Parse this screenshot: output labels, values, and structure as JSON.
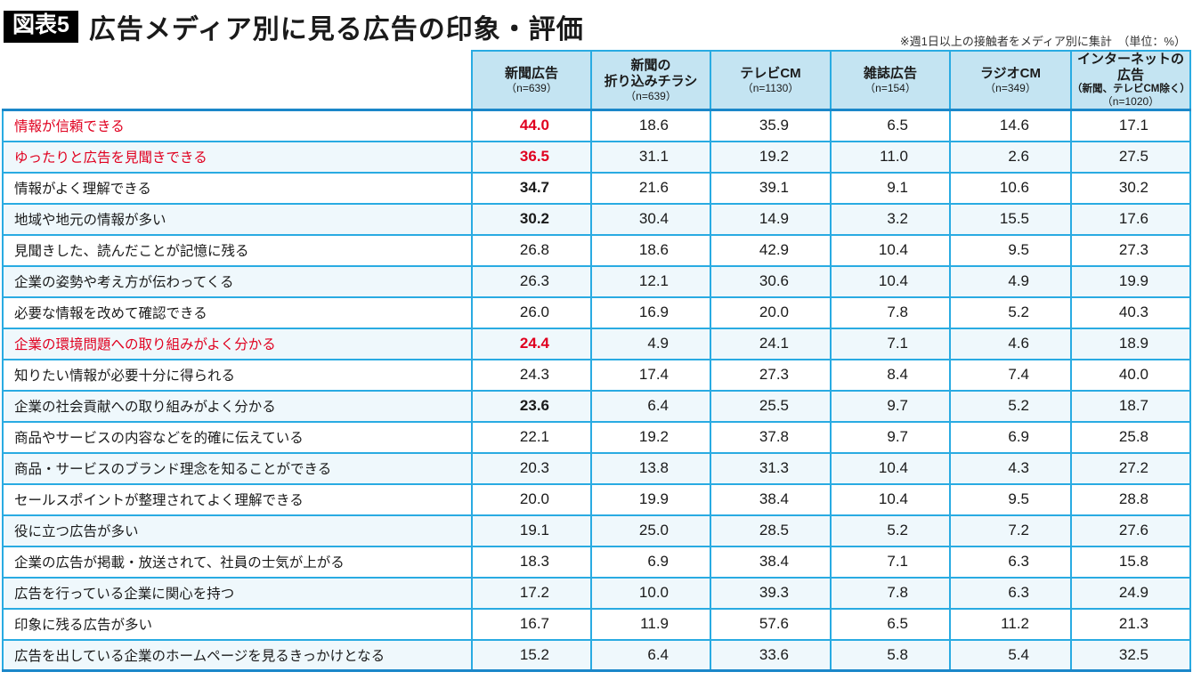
{
  "title": {
    "badge": "図表5",
    "text": "広告メディア別に見る広告の印象・評価"
  },
  "note": "※週1日以上の接触者をメディア別に集計　（単位：%）",
  "colors": {
    "accent_red": "#E0001F",
    "header_bg": "#C4E4F2",
    "border_cyan": "#29ABE2",
    "separator_blue": "#1B87C9",
    "row_alt_bg": "#EFF8FC"
  },
  "chart_data": {
    "type": "table",
    "unit": "%",
    "columns": [
      {
        "label": "新聞広告",
        "n": "（n=639）"
      },
      {
        "label": "新聞の\n折り込みチラシ",
        "n": "（n=639）"
      },
      {
        "label": "テレビCM",
        "n": "（n=1130）"
      },
      {
        "label": "雑誌広告",
        "n": "（n=154）"
      },
      {
        "label": "ラジオCM",
        "n": "（n=349）"
      },
      {
        "label": "インターネットの広告",
        "sub": "（新聞、テレビCM除く）",
        "n": "（n=1020）"
      }
    ],
    "rows": [
      {
        "label": "情報が信頼できる",
        "label_style": "red",
        "values": [
          "44.0",
          "18.6",
          "35.9",
          "6.5",
          "14.6",
          "17.1"
        ],
        "value_styles": [
          "red-bold",
          "",
          "",
          "",
          "",
          ""
        ]
      },
      {
        "label": "ゆったりと広告を見聞きできる",
        "label_style": "red",
        "values": [
          "36.5",
          "31.1",
          "19.2",
          "11.0",
          "2.6",
          "27.5"
        ],
        "value_styles": [
          "red-bold",
          "",
          "",
          "",
          "",
          ""
        ]
      },
      {
        "label": "情報がよく理解できる",
        "values": [
          "34.7",
          "21.6",
          "39.1",
          "9.1",
          "10.6",
          "30.2"
        ],
        "value_styles": [
          "bold",
          "",
          "",
          "",
          "",
          ""
        ]
      },
      {
        "label": "地域や地元の情報が多い",
        "values": [
          "30.2",
          "30.4",
          "14.9",
          "3.2",
          "15.5",
          "17.6"
        ],
        "value_styles": [
          "bold",
          "",
          "",
          "",
          "",
          ""
        ]
      },
      {
        "label": "見聞きした、読んだことが記憶に残る",
        "values": [
          "26.8",
          "18.6",
          "42.9",
          "10.4",
          "9.5",
          "27.3"
        ]
      },
      {
        "label": "企業の姿勢や考え方が伝わってくる",
        "values": [
          "26.3",
          "12.1",
          "30.6",
          "10.4",
          "4.9",
          "19.9"
        ]
      },
      {
        "label": "必要な情報を改めて確認できる",
        "values": [
          "26.0",
          "16.9",
          "20.0",
          "7.8",
          "5.2",
          "40.3"
        ]
      },
      {
        "label": "企業の環境問題への取り組みがよく分かる",
        "label_style": "red",
        "values": [
          "24.4",
          "4.9",
          "24.1",
          "7.1",
          "4.6",
          "18.9"
        ],
        "value_styles": [
          "red-bold",
          "",
          "",
          "",
          "",
          ""
        ]
      },
      {
        "label": "知りたい情報が必要十分に得られる",
        "values": [
          "24.3",
          "17.4",
          "27.3",
          "8.4",
          "7.4",
          "40.0"
        ]
      },
      {
        "label": "企業の社会貢献への取り組みがよく分かる",
        "values": [
          "23.6",
          "6.4",
          "25.5",
          "9.7",
          "5.2",
          "18.7"
        ],
        "value_styles": [
          "bold",
          "",
          "",
          "",
          "",
          ""
        ]
      },
      {
        "label": "商品やサービスの内容などを的確に伝えている",
        "values": [
          "22.1",
          "19.2",
          "37.8",
          "9.7",
          "6.9",
          "25.8"
        ]
      },
      {
        "label": "商品・サービスのブランド理念を知ることができる",
        "values": [
          "20.3",
          "13.8",
          "31.3",
          "10.4",
          "4.3",
          "27.2"
        ]
      },
      {
        "label": "セールスポイントが整理されてよく理解できる",
        "values": [
          "20.0",
          "19.9",
          "38.4",
          "10.4",
          "9.5",
          "28.8"
        ]
      },
      {
        "label": "役に立つ広告が多い",
        "values": [
          "19.1",
          "25.0",
          "28.5",
          "5.2",
          "7.2",
          "27.6"
        ]
      },
      {
        "label": "企業の広告が掲載・放送されて、社員の士気が上がる",
        "values": [
          "18.3",
          "6.9",
          "38.4",
          "7.1",
          "6.3",
          "15.8"
        ]
      },
      {
        "label": "広告を行っている企業に関心を持つ",
        "values": [
          "17.2",
          "10.0",
          "39.3",
          "7.8",
          "6.3",
          "24.9"
        ]
      },
      {
        "label": "印象に残る広告が多い",
        "values": [
          "16.7",
          "11.9",
          "57.6",
          "6.5",
          "11.2",
          "21.3"
        ]
      },
      {
        "label": "広告を出している企業のホームページを見るきっかけとなる",
        "values": [
          "15.2",
          "6.4",
          "33.6",
          "5.8",
          "5.4",
          "32.5"
        ]
      }
    ]
  }
}
